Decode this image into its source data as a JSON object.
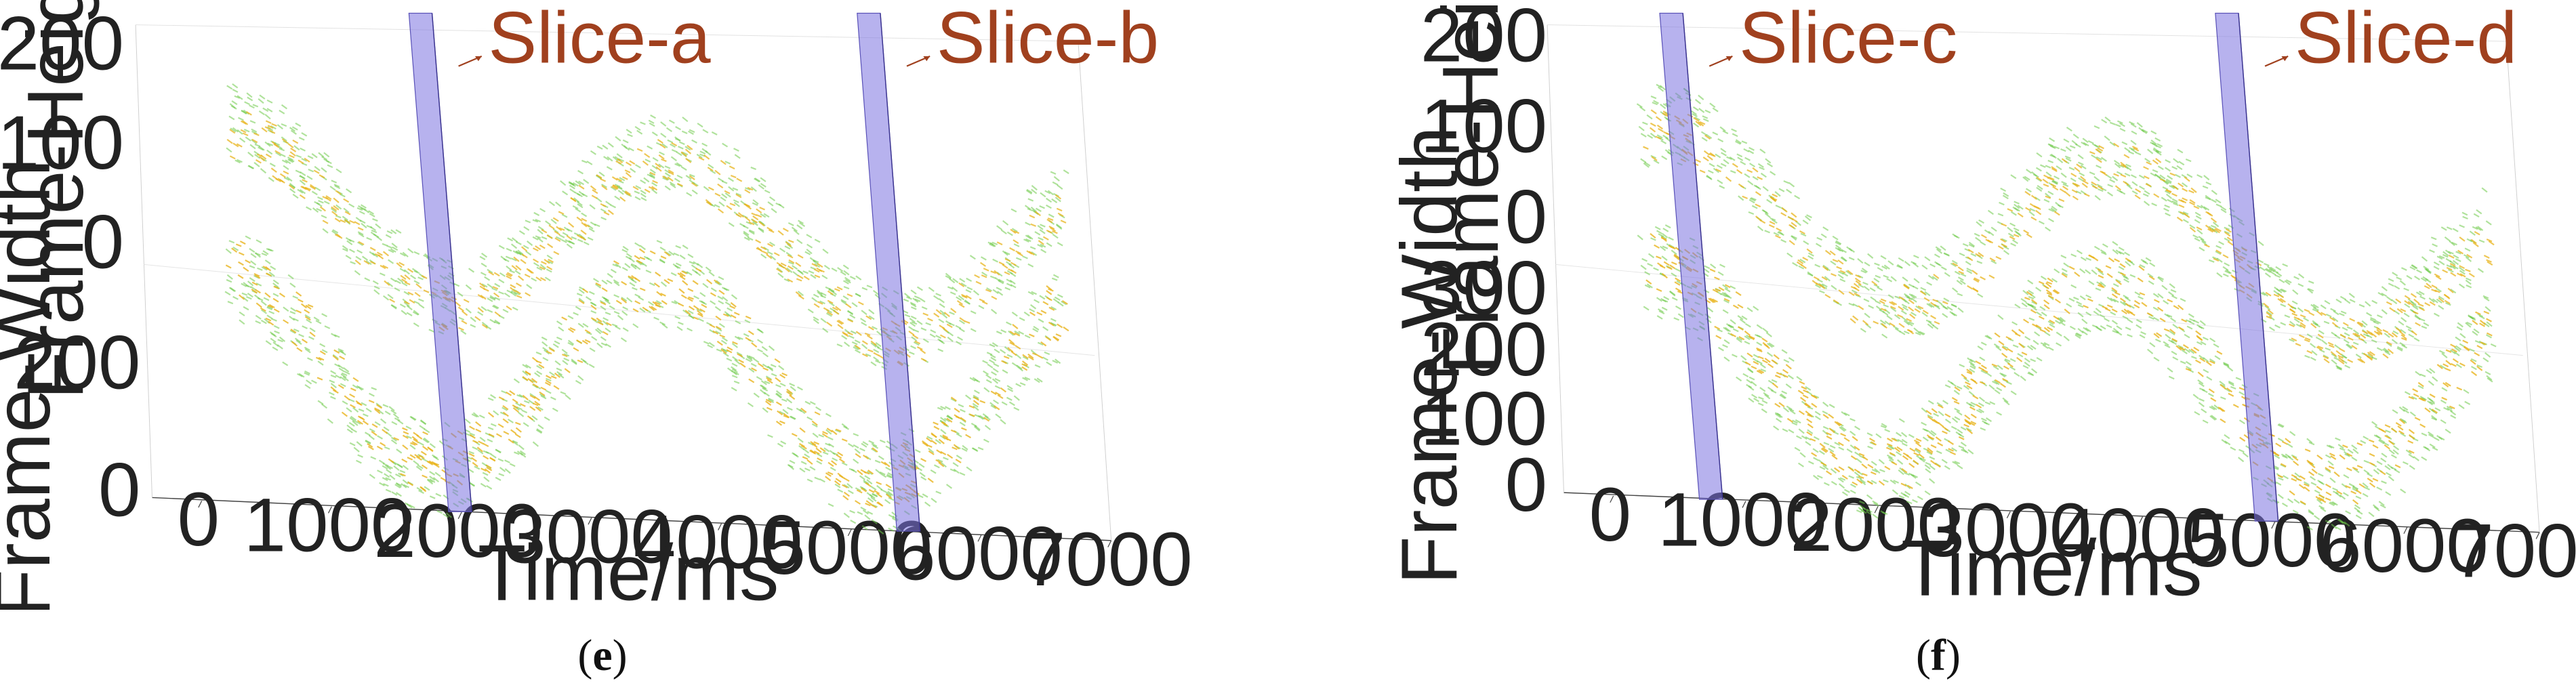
{
  "colors": {
    "series_a": "#e8b41e",
    "series_b": "#6fca4a",
    "slice": "#7b72e0",
    "slice_label": "#a0401e",
    "axis": "#444444"
  },
  "chart_data": [
    {
      "type": "scatter",
      "panel_caption": "e",
      "xlabel": "Time/ms",
      "ylabel_top": "Frame-Height",
      "ylabel_bottom": "Frame-Width",
      "x_ticks": [
        "0",
        "1000",
        "2000",
        "3000",
        "4000",
        "5000",
        "6000",
        "7000"
      ],
      "height_ticks": [
        "0",
        "100",
        "200"
      ],
      "width_ticks": [
        "0",
        "200"
      ],
      "xlim": [
        0,
        7000
      ],
      "height_lim": [
        0,
        200
      ],
      "width_lim": [
        0,
        300
      ],
      "slices": [
        {
          "label": "Slice-a",
          "time": 1900
        },
        {
          "label": "Slice-b",
          "time": 5350
        }
      ]
    },
    {
      "type": "scatter",
      "panel_caption": "f",
      "xlabel": "Time/ms",
      "ylabel_top": "Frame-Height",
      "ylabel_bottom": "Frame-Width",
      "x_ticks": [
        "0",
        "1000",
        "2000",
        "3000",
        "4000",
        "5000",
        "6000",
        "7000"
      ],
      "height_ticks": [
        "0",
        "100",
        "200"
      ],
      "width_ticks": [
        "0",
        "100",
        "200",
        "300"
      ],
      "xlim": [
        0,
        7000
      ],
      "height_lim": [
        0,
        200
      ],
      "width_lim": [
        0,
        300
      ],
      "slices": [
        {
          "label": "Slice-c",
          "time": 650
        },
        {
          "label": "Slice-d",
          "time": 4850
        }
      ]
    }
  ]
}
